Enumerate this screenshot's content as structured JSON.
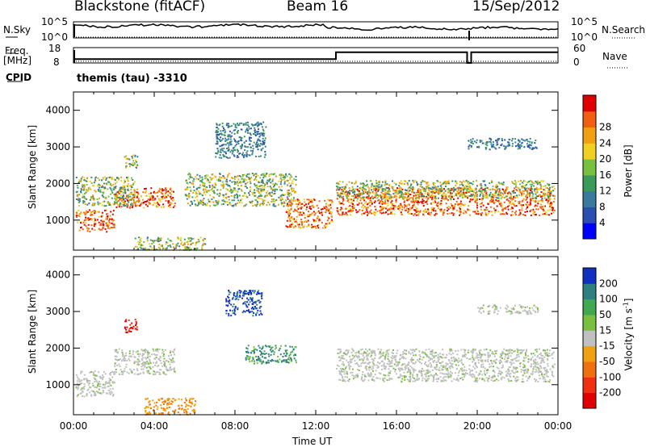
{
  "header": {
    "station": "Blackstone (fitACF)",
    "beam": "Beam 16",
    "date": "15/Sep/2012",
    "program": "themis (tau) -3310"
  },
  "side_labels": {
    "nsky": "N.Sky",
    "nsearch": "N.Search",
    "freq": "Freq.",
    "mhz": "[MHz]",
    "nave": "Nave",
    "cpid": "CPID"
  },
  "noise_ticks": {
    "left_top": "10^5",
    "left_bottom": "10^0",
    "right_top": "10^5",
    "right_bottom": "10^0"
  },
  "freq_ticks": {
    "left": [
      "18",
      "8"
    ],
    "right": [
      "60",
      "0"
    ]
  },
  "chart_data": [
    {
      "type": "line",
      "panel": "noise",
      "series": [
        {
          "name": "N.Sky"
        },
        {
          "name": "N.Search"
        }
      ],
      "x": [
        "00:00",
        "24:00"
      ]
    },
    {
      "type": "line",
      "panel": "frequency",
      "series": [
        {
          "name": "Freq.",
          "unit": "MHz",
          "x": [
            0,
            13.0,
            13.0,
            19.5,
            19.5,
            19.7,
            19.7,
            24
          ],
          "y": [
            10.5,
            10.5,
            15,
            15,
            8,
            8,
            15,
            15
          ]
        },
        {
          "name": "Nave",
          "x": [
            0,
            24
          ],
          "y": [
            1,
            1
          ]
        }
      ]
    },
    {
      "type": "heatmap",
      "panel": "power",
      "xlabel": "",
      "ylabel": "Slant Range [km]",
      "y_ticks": [
        "1000",
        "2000",
        "3000",
        "4000"
      ],
      "ylim": [
        180,
        4500
      ],
      "colorbar": {
        "label": "Power [dB]",
        "ticks": [
          "4",
          "8",
          "12",
          "16",
          "20",
          "24",
          "28"
        ],
        "colors": [
          "#0000ff",
          "#2a4fb0",
          "#3a7a9c",
          "#3a9a5a",
          "#7ac040",
          "#f0d020",
          "#f0a010",
          "#f06010",
          "#e00000"
        ]
      },
      "bands": [
        {
          "x0": 0.1,
          "x1": 2.0,
          "y0": 700,
          "y1": 1300,
          "level": "high"
        },
        {
          "x0": 2.0,
          "x1": 5.0,
          "y0": 1350,
          "y1": 1900,
          "level": "high"
        },
        {
          "x0": 0.1,
          "x1": 3.0,
          "y0": 1400,
          "y1": 2200,
          "level": "mid"
        },
        {
          "x0": 2.5,
          "x1": 3.2,
          "y0": 2400,
          "y1": 2800,
          "level": "mid"
        },
        {
          "x0": 3.0,
          "x1": 6.5,
          "y0": 200,
          "y1": 550,
          "level": "mid"
        },
        {
          "x0": 5.5,
          "x1": 11.0,
          "y0": 1400,
          "y1": 2300,
          "level": "mid"
        },
        {
          "x0": 7.0,
          "x1": 9.5,
          "y0": 2700,
          "y1": 3700,
          "level": "low"
        },
        {
          "x0": 10.5,
          "x1": 12.8,
          "y0": 800,
          "y1": 1600,
          "level": "high"
        },
        {
          "x0": 13.0,
          "x1": 23.8,
          "y0": 1150,
          "y1": 1900,
          "level": "high"
        },
        {
          "x0": 13.0,
          "x1": 23.8,
          "y0": 1600,
          "y1": 2100,
          "level": "mid"
        },
        {
          "x0": 19.5,
          "x1": 23.0,
          "y0": 2950,
          "y1": 3250,
          "level": "low"
        }
      ]
    },
    {
      "type": "heatmap",
      "panel": "velocity",
      "xlabel": "Time UT",
      "ylabel": "Slant Range [km]",
      "x_ticks": [
        "00:00",
        "04:00",
        "08:00",
        "12:00",
        "16:00",
        "20:00",
        "00:00"
      ],
      "y_ticks": [
        "1000",
        "2000",
        "3000",
        "4000"
      ],
      "ylim": [
        180,
        4500
      ],
      "colorbar": {
        "label": "Velocity [m s^-1]",
        "ticks": [
          "200",
          "100",
          "50",
          "15",
          "-15",
          "-50",
          "-100",
          "-200"
        ],
        "colors": [
          "#1030c0",
          "#2f7f80",
          "#3fa850",
          "#7ac040",
          "#c0c0c0",
          "#f0a010",
          "#f07010",
          "#f03010",
          "#e00000"
        ]
      },
      "bands": [
        {
          "x0": 0.1,
          "x1": 2.0,
          "y0": 700,
          "y1": 1400,
          "vel": "ground"
        },
        {
          "x0": 2.0,
          "x1": 5.0,
          "y0": 1300,
          "y1": 2000,
          "vel": "ground"
        },
        {
          "x0": 2.5,
          "x1": 3.2,
          "y0": 2450,
          "y1": 2800,
          "vel": "-200"
        },
        {
          "x0": 3.5,
          "x1": 6.0,
          "y0": 200,
          "y1": 650,
          "vel": "-50"
        },
        {
          "x0": 7.5,
          "x1": 9.3,
          "y0": 2900,
          "y1": 3600,
          "vel": "200"
        },
        {
          "x0": 8.5,
          "x1": 11.0,
          "y0": 1600,
          "y1": 2100,
          "vel": "100"
        },
        {
          "x0": 13.0,
          "x1": 23.8,
          "y0": 1100,
          "y1": 2000,
          "vel": "ground"
        },
        {
          "x0": 20.0,
          "x1": 23.0,
          "y0": 2950,
          "y1": 3200,
          "vel": "ground"
        }
      ]
    }
  ],
  "titles": {
    "xlabel": "Time UT",
    "ylabel": "Slant Range [km]",
    "power_label": "Power [dB]",
    "velocity_label": "Velocity [m s",
    "velocity_exp": "-1",
    "velocity_end": "]"
  }
}
